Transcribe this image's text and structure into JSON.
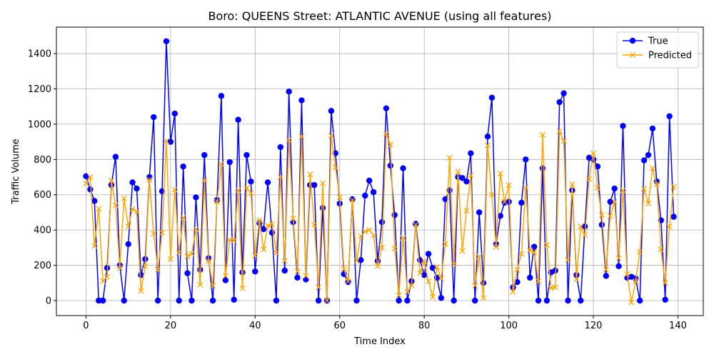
{
  "chart_data": {
    "type": "line",
    "title": "Boro: QUEENS Street: ATLANTIC AVENUE (using all features)",
    "xlabel": "Time Index",
    "ylabel": "Traffic Volume",
    "xlim": [
      -7,
      146
    ],
    "ylim": [
      -85,
      1550
    ],
    "xticks": [
      0,
      20,
      40,
      60,
      80,
      100,
      120,
      140
    ],
    "yticks": [
      0,
      200,
      400,
      600,
      800,
      1000,
      1200,
      1400
    ],
    "grid": true,
    "legend_position": "top-right",
    "series": [
      {
        "name": "True",
        "color": "#0000ff",
        "marker": "circle",
        "values": [
          705,
          630,
          565,
          0,
          0,
          185,
          655,
          815,
          200,
          0,
          320,
          670,
          635,
          145,
          235,
          700,
          1040,
          0,
          620,
          1470,
          900,
          1060,
          0,
          760,
          155,
          0,
          585,
          175,
          825,
          240,
          0,
          570,
          1160,
          115,
          785,
          5,
          1025,
          160,
          825,
          675,
          165,
          440,
          405,
          670,
          385,
          0,
          870,
          170,
          1185,
          445,
          130,
          1135,
          120,
          655,
          655,
          0,
          525,
          0,
          1075,
          835,
          550,
          150,
          105,
          575,
          0,
          230,
          595,
          680,
          615,
          225,
          445,
          1090,
          765,
          485,
          0,
          750,
          0,
          110,
          435,
          230,
          145,
          265,
          185,
          130,
          15,
          575,
          625,
          0,
          700,
          695,
          675,
          835,
          0,
          500,
          100,
          930,
          1150,
          320,
          480,
          555,
          560,
          75,
          105,
          555,
          800,
          130,
          305,
          0,
          750,
          0,
          160,
          170,
          1125,
          1175,
          0,
          625,
          145,
          0,
          420,
          810,
          800,
          760,
          430,
          140,
          560,
          635,
          195,
          990,
          130,
          135,
          125,
          0,
          795,
          825,
          975,
          675,
          455,
          5,
          1045,
          475
        ]
      },
      {
        "name": "Predicted",
        "color": "#ffa500",
        "marker": "x",
        "values": [
          665,
          700,
          310,
          520,
          110,
          135,
          680,
          540,
          185,
          580,
          420,
          520,
          505,
          55,
          195,
          685,
          380,
          175,
          385,
          905,
          235,
          630,
          270,
          470,
          250,
          265,
          405,
          90,
          680,
          225,
          85,
          560,
          775,
          140,
          345,
          340,
          625,
          70,
          640,
          610,
          255,
          455,
          290,
          425,
          435,
          270,
          700,
          225,
          910,
          465,
          165,
          930,
          140,
          715,
          430,
          75,
          665,
          0,
          935,
          755,
          585,
          180,
          110,
          570,
          225,
          365,
          390,
          400,
          370,
          195,
          300,
          945,
          885,
          295,
          30,
          355,
          50,
          85,
          430,
          155,
          225,
          110,
          20,
          190,
          125,
          320,
          810,
          205,
          730,
          280,
          510,
          710,
          85,
          250,
          15,
          880,
          600,
          305,
          720,
          560,
          655,
          50,
          175,
          265,
          640,
          285,
          275,
          110,
          940,
          315,
          70,
          75,
          960,
          905,
          230,
          660,
          120,
          420,
          370,
          690,
          835,
          640,
          485,
          175,
          480,
          560,
          240,
          625,
          150,
          -10,
          110,
          275,
          635,
          550,
          750,
          660,
          290,
          100,
          420,
          645
        ]
      }
    ]
  }
}
